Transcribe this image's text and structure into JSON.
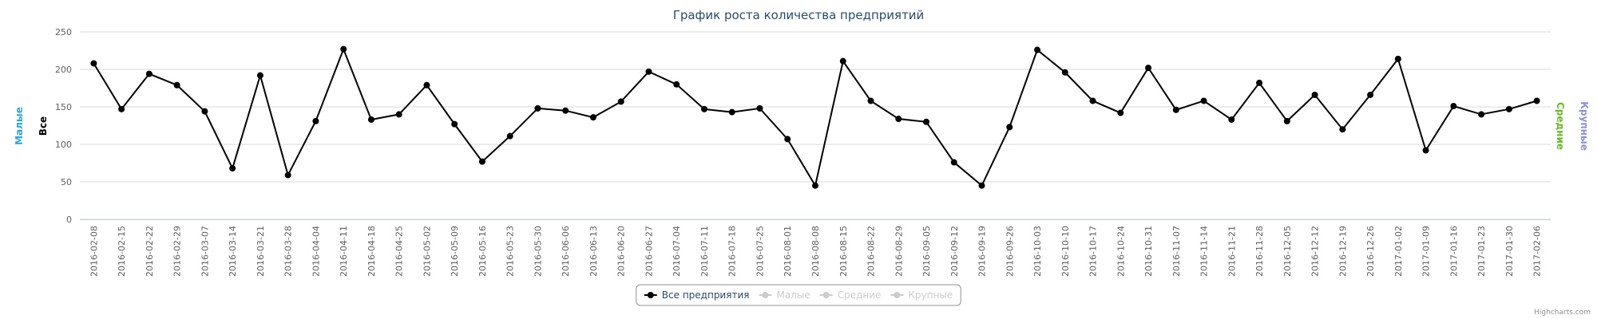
{
  "chart_data": {
    "type": "line",
    "title": "График роста количества предприятий",
    "categories": [
      "2016-02-08",
      "2016-02-15",
      "2016-02-22",
      "2016-02-29",
      "2016-03-07",
      "2016-03-14",
      "2016-03-21",
      "2016-03-28",
      "2016-04-04",
      "2016-04-11",
      "2016-04-18",
      "2016-04-25",
      "2016-05-02",
      "2016-05-09",
      "2016-05-16",
      "2016-05-23",
      "2016-05-30",
      "2016-06-06",
      "2016-06-13",
      "2016-06-20",
      "2016-06-27",
      "2016-07-04",
      "2016-07-11",
      "2016-07-18",
      "2016-07-25",
      "2016-08-01",
      "2016-08-08",
      "2016-08-15",
      "2016-08-22",
      "2016-08-29",
      "2016-09-05",
      "2016-09-12",
      "2016-09-19",
      "2016-09-26",
      "2016-10-03",
      "2016-10-10",
      "2016-10-17",
      "2016-10-24",
      "2016-10-31",
      "2016-11-07",
      "2016-11-14",
      "2016-11-21",
      "2016-11-28",
      "2016-12-05",
      "2016-12-12",
      "2016-12-19",
      "2016-12-26",
      "2017-01-02",
      "2017-01-09",
      "2017-01-16",
      "2017-01-23",
      "2017-01-30",
      "2017-02-06"
    ],
    "series": [
      {
        "name": "Все предприятия",
        "color": "#000000",
        "values": [
          208,
          147,
          194,
          179,
          144,
          68,
          192,
          59,
          131,
          227,
          133,
          140,
          179,
          127,
          77,
          111,
          148,
          145,
          136,
          157,
          197,
          180,
          147,
          143,
          148,
          107,
          45,
          211,
          158,
          134,
          130,
          76,
          45,
          123,
          226,
          196,
          158,
          142,
          202,
          146,
          158,
          133,
          182,
          131,
          166,
          120,
          166,
          214,
          92,
          151,
          140,
          147,
          158
        ]
      },
      {
        "name": "Малые",
        "color": "#cccccc",
        "hidden": true
      },
      {
        "name": "Средние",
        "color": "#cccccc",
        "hidden": true
      },
      {
        "name": "Крупные",
        "color": "#cccccc",
        "hidden": true
      }
    ],
    "axis_titles_left": [
      {
        "text": "Малые",
        "color": "#2aa6dc"
      },
      {
        "text": "Все",
        "color": "#000000"
      }
    ],
    "axis_titles_right": [
      {
        "text": "Средние",
        "color": "#66bb22"
      },
      {
        "text": "Крупные",
        "color": "#8a90d8"
      }
    ],
    "ylim": [
      0,
      250
    ],
    "yticks": [
      0,
      50,
      100,
      150,
      200,
      250
    ],
    "grid": true,
    "legend": "bottom",
    "credits": "Highcharts.com"
  }
}
